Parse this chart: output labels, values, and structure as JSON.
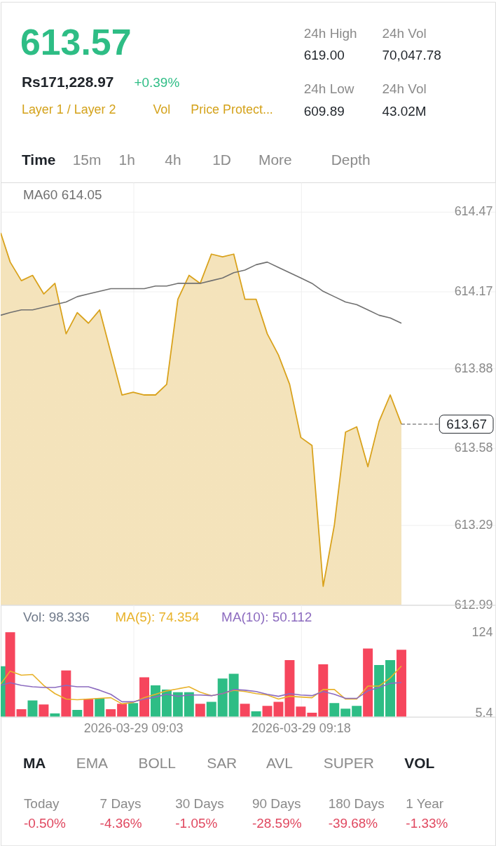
{
  "chart_data": [
    {
      "type": "other",
      "title": "613.57",
      "annotations": [
        "Rs171,228.97",
        "+0.39%",
        "Layer 1 / Layer 2",
        "Vol",
        "Price Protect...",
        "24h High",
        "619.00",
        "24h Vol",
        "70,047.78",
        "24h Low",
        "609.89",
        "24h Vol",
        "43.02M",
        "Time",
        "15m",
        "1h",
        "4h",
        "1D",
        "More",
        "Depth"
      ]
    },
    {
      "type": "line",
      "x": [
        "2026-03-29T08:51:09",
        "2026-03-29T08:52",
        "2026-03-29T08:53",
        "2026-03-29T08:54",
        "2026-03-29T08:55",
        "2026-03-29T08:56",
        "2026-03-29T08:57",
        "2026-03-29T08:58",
        "2026-03-29T08:59",
        "2026-03-29T09:00",
        "2026-03-29T09:01",
        "2026-03-29T09:02",
        "2026-03-29T09:03",
        "2026-03-29T09:04",
        "2026-03-29T09:05",
        "2026-03-29T09:06",
        "2026-03-29T09:07",
        "2026-03-29T09:08",
        "2026-03-29T09:09",
        "2026-03-29T09:10",
        "2026-03-29T09:11",
        "2026-03-29T09:12",
        "2026-03-29T09:13",
        "2026-03-29T09:14",
        "2026-03-29T09:15",
        "2026-03-29T09:16",
        "2026-03-29T09:17",
        "2026-03-29T09:18",
        "2026-03-29T09:19",
        "2026-03-29T09:20",
        "2026-03-29T09:21",
        "2026-03-29T09:22",
        "2026-03-29T09:23",
        "2026-03-29T09:24",
        "2026-03-29T09:25",
        "2026-03-29T09:26",
        "2026-03-29T09:27"
      ],
      "xlim": [
        "2026-03-29T08:51:09",
        "2026-03-29T09:35:24"
      ],
      "xticks": [
        {
          "value": "2026-03-29T09:03",
          "label": null
        },
        {
          "value": "2026-03-29T09:18",
          "label": null
        }
      ],
      "ylim": [
        612.99,
        614.58
      ],
      "yticks": [
        612.99,
        613.29,
        613.58,
        613.88,
        614.17,
        614.47
      ],
      "tick_labels": "y",
      "grid": true,
      "legend": "top left",
      "series": [
        {
          "type": "area",
          "color": "#d9a21c",
          "values": [
            614.39,
            614.28,
            614.21,
            614.23,
            614.16,
            614.2,
            614.01,
            614.09,
            614.05,
            614.1,
            613.94,
            613.78,
            613.79,
            613.78,
            613.78,
            613.82,
            614.14,
            614.23,
            614.2,
            614.31,
            614.3,
            614.31,
            614.14,
            614.14,
            614.01,
            613.93,
            613.82,
            613.62,
            613.59,
            613.06,
            613.29,
            613.64,
            613.66,
            613.51,
            613.68,
            613.78,
            613.67
          ]
        },
        {
          "type": "line",
          "name": "MA60 614.05",
          "color": "#707070",
          "values": [
            614.08,
            614.09,
            614.1,
            614.1,
            614.11,
            614.12,
            614.13,
            614.15,
            614.16,
            614.17,
            614.18,
            614.18,
            614.18,
            614.18,
            614.19,
            614.19,
            614.2,
            614.2,
            614.2,
            614.21,
            614.22,
            614.24,
            614.25,
            614.27,
            614.28,
            614.26,
            614.24,
            614.22,
            614.2,
            614.17,
            614.15,
            614.13,
            614.12,
            614.1,
            614.08,
            614.07,
            614.05
          ]
        }
      ],
      "ref_lines": [
        {
          "axis": "y",
          "value": 613.67,
          "label": "613.67",
          "line_style": "dashed",
          "color": "#555555"
        }
      ]
    },
    {
      "type": "bar",
      "x": [
        "2026-03-29T08:51:09",
        "2026-03-29T08:52",
        "2026-03-29T08:53",
        "2026-03-29T08:54",
        "2026-03-29T08:55",
        "2026-03-29T08:56",
        "2026-03-29T08:57",
        "2026-03-29T08:58",
        "2026-03-29T08:59",
        "2026-03-29T09:00",
        "2026-03-29T09:01",
        "2026-03-29T09:02",
        "2026-03-29T09:03",
        "2026-03-29T09:04",
        "2026-03-29T09:05",
        "2026-03-29T09:06",
        "2026-03-29T09:07",
        "2026-03-29T09:08",
        "2026-03-29T09:09",
        "2026-03-29T09:10",
        "2026-03-29T09:11",
        "2026-03-29T09:12",
        "2026-03-29T09:13",
        "2026-03-29T09:14",
        "2026-03-29T09:15",
        "2026-03-29T09:16",
        "2026-03-29T09:17",
        "2026-03-29T09:18",
        "2026-03-29T09:19",
        "2026-03-29T09:20",
        "2026-03-29T09:21",
        "2026-03-29T09:22",
        "2026-03-29T09:23",
        "2026-03-29T09:24",
        "2026-03-29T09:25",
        "2026-03-29T09:26",
        "2026-03-29T09:27"
      ],
      "xlim": [
        "2026-03-29T08:51:09",
        "2026-03-29T09:35:24"
      ],
      "xticks": [
        {
          "value": "2026-03-29T09:03",
          "label": "2026-03-29 09:03"
        },
        {
          "value": "2026-03-29T09:18",
          "label": "2026-03-29 09:18"
        }
      ],
      "ylim": [
        0,
        164
      ],
      "yticks": [
        5.4,
        124
      ],
      "grid": "x",
      "legend": "top left",
      "series": [
        {
          "type": "bar",
          "name": "Vol: 98.336",
          "colors": [
            "#2ebd85",
            "#f6465d",
            "#f6465d",
            "#2ebd85",
            "#f6465d",
            "#2ebd85",
            "#f6465d",
            "#2ebd85",
            "#f6465d",
            "#2ebd85",
            "#f6465d",
            "#f6465d",
            "#2ebd85",
            "#f6465d",
            "#2ebd85",
            "#2ebd85",
            "#2ebd85",
            "#2ebd85",
            "#f6465d",
            "#2ebd85",
            "#2ebd85",
            "#2ebd85",
            "#f6465d",
            "#2ebd85",
            "#f6465d",
            "#f6465d",
            "#f6465d",
            "#f6465d",
            "#f6465d",
            "#f6465d",
            "#2ebd85",
            "#2ebd85",
            "#2ebd85",
            "#f6465d",
            "#2ebd85",
            "#2ebd85",
            "#f6465d"
          ],
          "values": [
            74,
            124,
            11,
            24,
            18,
            5,
            68,
            10,
            26,
            27,
            11,
            19,
            20,
            58,
            46,
            40,
            36,
            36,
            19,
            22,
            56,
            63,
            19,
            8,
            16,
            22,
            83,
            15,
            6,
            77,
            20,
            12,
            16,
            100,
            76,
            83,
            98.336
          ]
        },
        {
          "type": "line",
          "name": "MA(5): 74.354",
          "color": "#e8b22a",
          "values": [
            48,
            67,
            61,
            62,
            46,
            34,
            26,
            25,
            26,
            27,
            28,
            19,
            21,
            28,
            33,
            38,
            41,
            44,
            36,
            31,
            34,
            39,
            37,
            34,
            32,
            26,
            30,
            29,
            28,
            40,
            40,
            26,
            26,
            45,
            45,
            57,
            74.354
          ]
        },
        {
          "type": "line",
          "name": "MA(10): 50.112",
          "color": "#8c6bbf",
          "values": [
            46,
            50,
            46,
            44,
            43,
            43,
            46,
            44,
            44,
            39,
            33,
            22,
            22,
            26,
            29,
            33,
            30,
            32,
            32,
            31,
            34,
            40,
            39,
            37,
            33,
            30,
            34,
            32,
            31,
            37,
            33,
            27,
            27,
            38,
            43,
            49,
            50.112
          ]
        }
      ]
    },
    {
      "type": "other",
      "annotations": [
        "MA",
        "EMA",
        "BOLL",
        "SAR",
        "AVL",
        "SUPER",
        "VOL",
        "Today",
        "-0.50%",
        "7 Days",
        "-4.36%",
        "30 Days",
        "-1.05%",
        "90 Days",
        "-28.59%",
        "180 Days",
        "-39.68%",
        "1 Year",
        "-1.33%"
      ]
    }
  ]
}
